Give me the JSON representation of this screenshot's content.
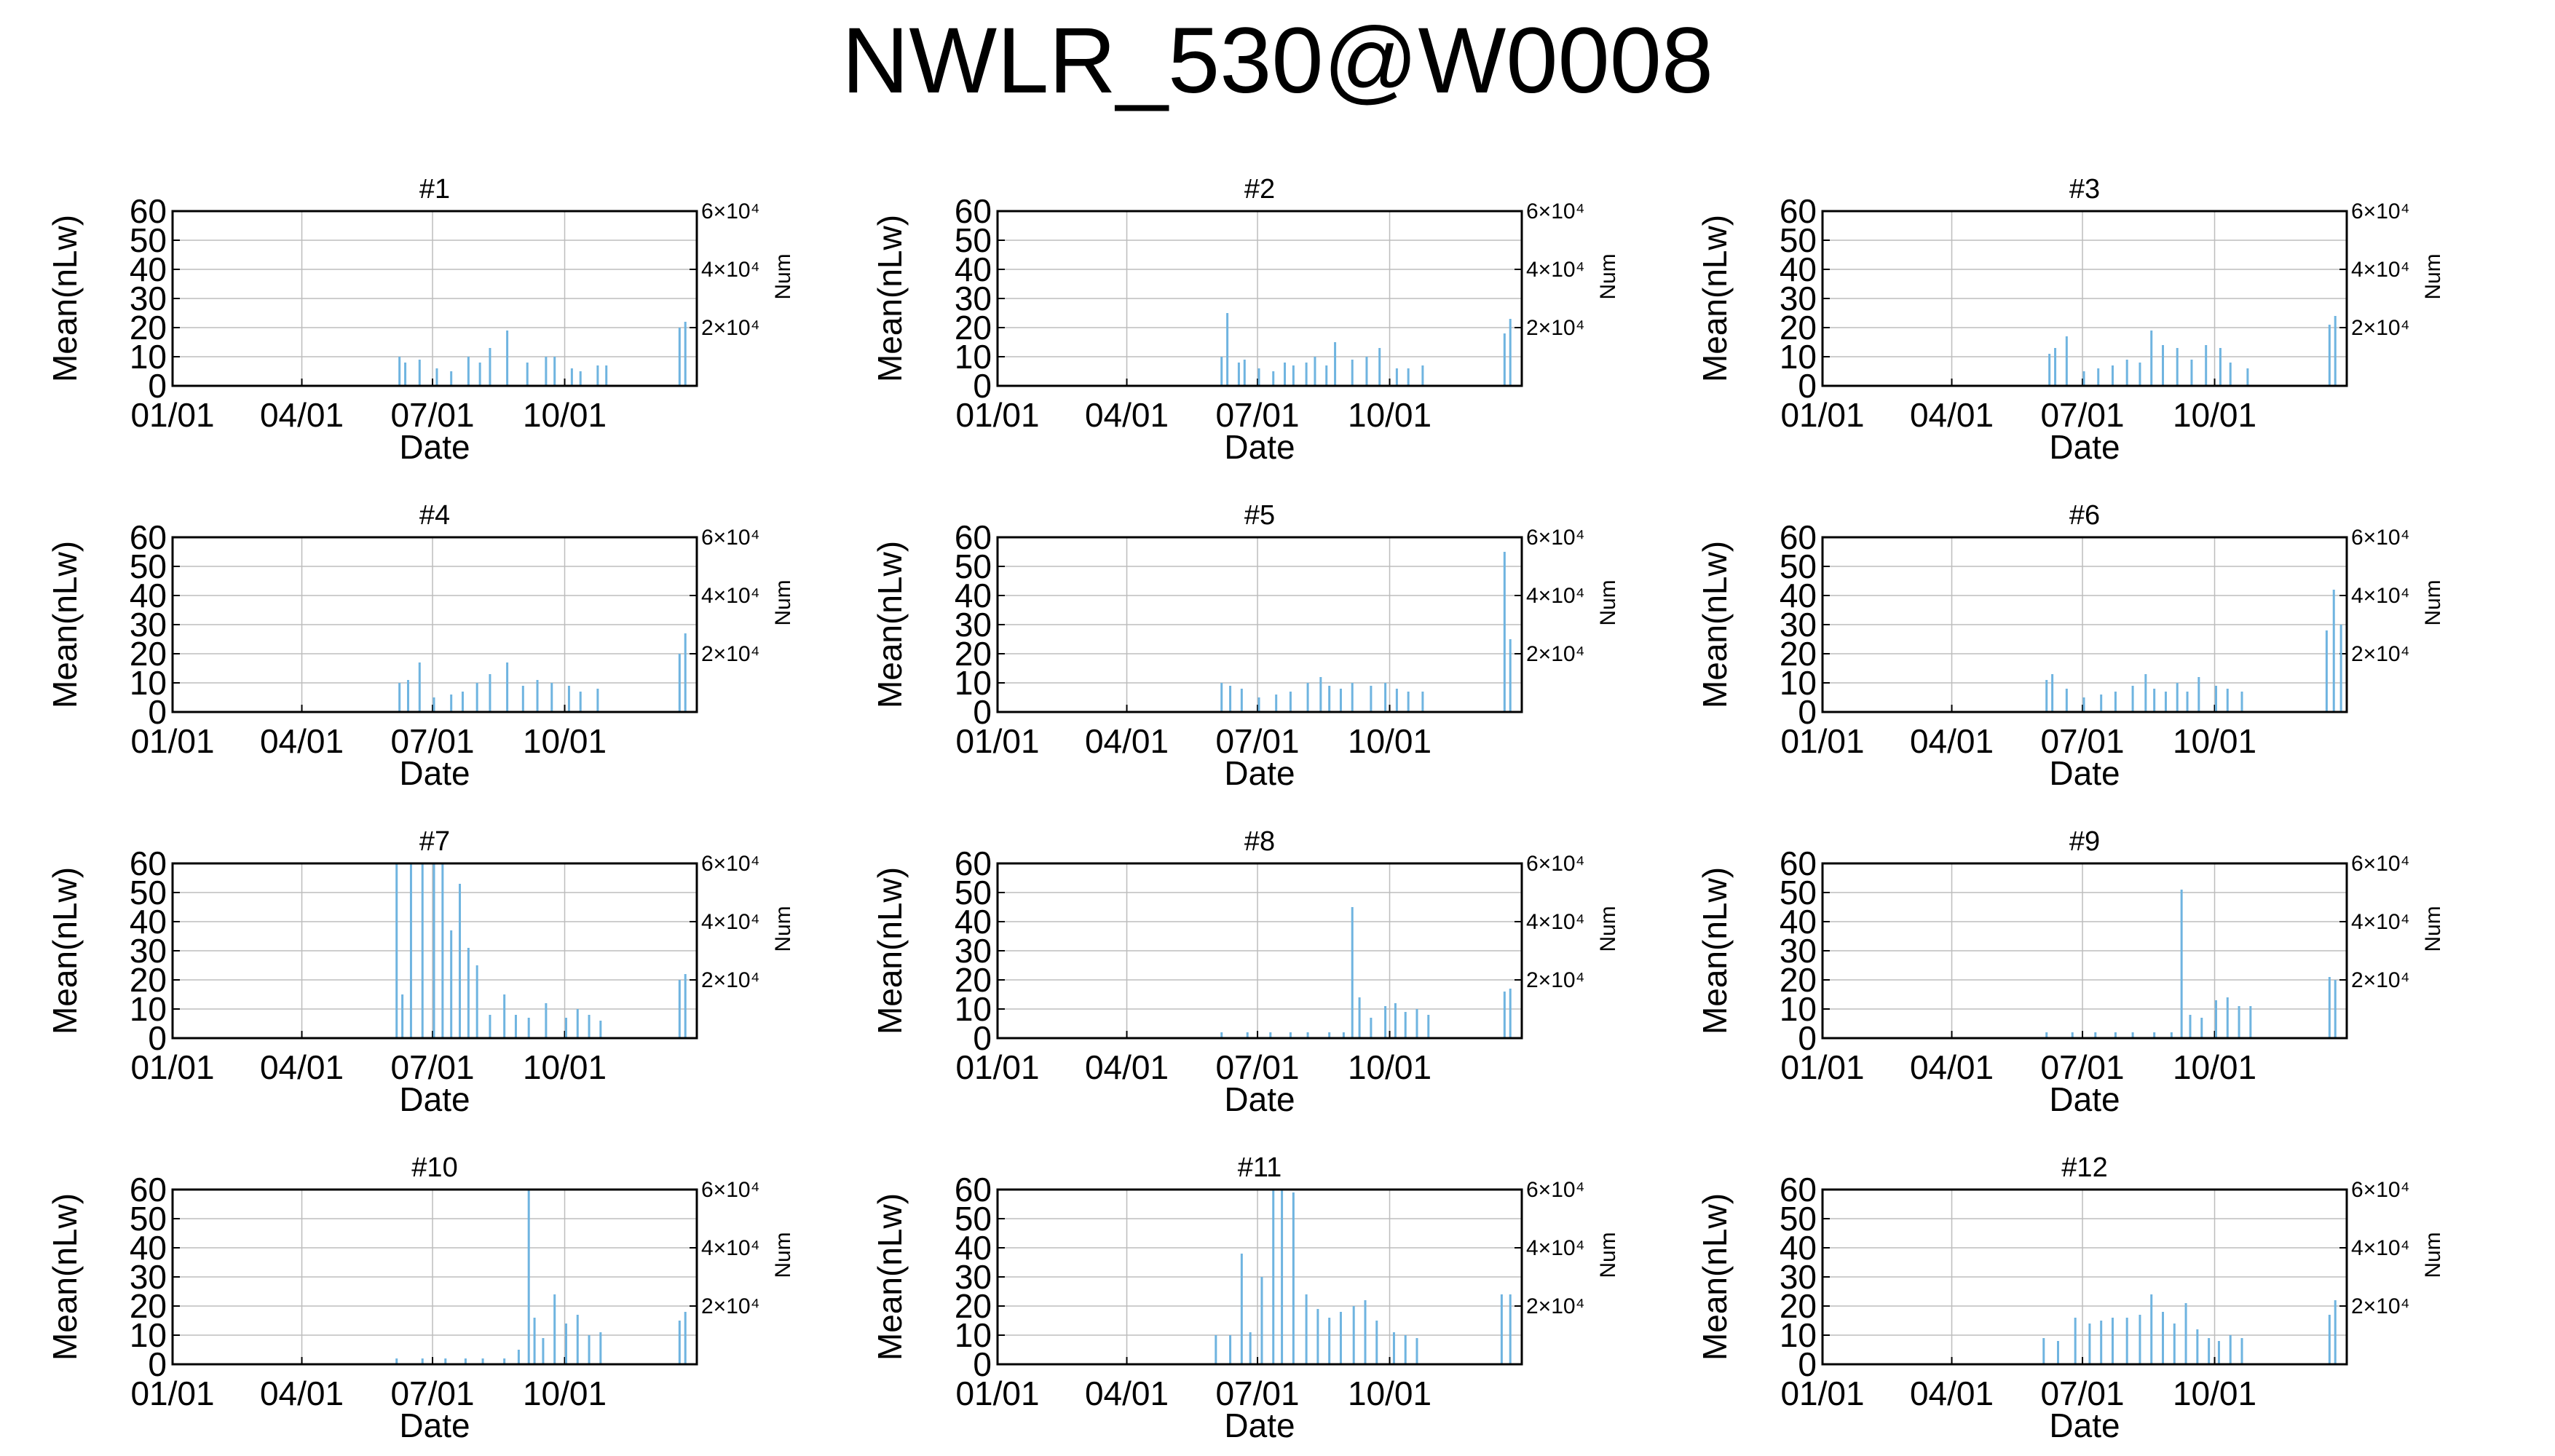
{
  "title": "NWLR_530@W0008",
  "chart_data": {
    "type": "bar",
    "xlabel": "Date",
    "ylabel": "Mean(nLw)",
    "y2label": "Num",
    "ylim": [
      0,
      60
    ],
    "yticks": [
      0,
      10,
      20,
      30,
      40,
      50,
      60
    ],
    "y2ticks": [
      "2×10⁴",
      "4×10⁴",
      "6×10⁴"
    ],
    "x_range": [
      "01/01",
      "12/31"
    ],
    "xticks": [
      "01/01",
      "04/01",
      "07/01",
      "10/01"
    ],
    "grid": true,
    "bar_color": "#6fb4e0",
    "panels": [
      {
        "title": "#1",
        "bars": [
          [
            "06/08",
            10
          ],
          [
            "06/12",
            8
          ],
          [
            "06/22",
            9
          ],
          [
            "07/04",
            6
          ],
          [
            "07/14",
            5
          ],
          [
            "07/26",
            10
          ],
          [
            "08/03",
            8
          ],
          [
            "08/10",
            13
          ],
          [
            "08/22",
            19
          ],
          [
            "09/05",
            8
          ],
          [
            "09/18",
            10
          ],
          [
            "09/24",
            10
          ],
          [
            "10/06",
            6
          ],
          [
            "10/12",
            5
          ],
          [
            "10/24",
            7
          ],
          [
            "10/30",
            7
          ],
          [
            "12/20",
            20
          ],
          [
            "12/24",
            22
          ]
        ]
      },
      {
        "title": "#2",
        "bars": [
          [
            "06/06",
            10
          ],
          [
            "06/10",
            25
          ],
          [
            "06/18",
            8
          ],
          [
            "06/22",
            9
          ],
          [
            "07/02",
            6
          ],
          [
            "07/12",
            5
          ],
          [
            "07/20",
            8
          ],
          [
            "07/26",
            7
          ],
          [
            "08/04",
            8
          ],
          [
            "08/10",
            10
          ],
          [
            "08/18",
            7
          ],
          [
            "08/24",
            15
          ],
          [
            "09/05",
            9
          ],
          [
            "09/15",
            10
          ],
          [
            "09/24",
            13
          ],
          [
            "10/06",
            6
          ],
          [
            "10/14",
            6
          ],
          [
            "10/24",
            7
          ],
          [
            "12/20",
            18
          ],
          [
            "12/24",
            23
          ]
        ]
      },
      {
        "title": "#3",
        "bars": [
          [
            "06/08",
            11
          ],
          [
            "06/12",
            13
          ],
          [
            "06/20",
            17
          ],
          [
            "07/02",
            5
          ],
          [
            "07/12",
            6
          ],
          [
            "07/22",
            7
          ],
          [
            "08/01",
            9
          ],
          [
            "08/10",
            8
          ],
          [
            "08/18",
            19
          ],
          [
            "08/26",
            14
          ],
          [
            "09/05",
            13
          ],
          [
            "09/15",
            9
          ],
          [
            "09/25",
            14
          ],
          [
            "10/05",
            13
          ],
          [
            "10/12",
            8
          ],
          [
            "10/24",
            6
          ],
          [
            "12/20",
            21
          ],
          [
            "12/24",
            24
          ]
        ]
      },
      {
        "title": "#4",
        "bars": [
          [
            "06/08",
            10
          ],
          [
            "06/14",
            11
          ],
          [
            "06/22",
            17
          ],
          [
            "07/02",
            5
          ],
          [
            "07/14",
            6
          ],
          [
            "07/22",
            7
          ],
          [
            "08/01",
            10
          ],
          [
            "08/10",
            13
          ],
          [
            "08/22",
            17
          ],
          [
            "09/02",
            9
          ],
          [
            "09/12",
            11
          ],
          [
            "09/22",
            10
          ],
          [
            "10/04",
            9
          ],
          [
            "10/12",
            7
          ],
          [
            "10/24",
            8
          ],
          [
            "12/20",
            20
          ],
          [
            "12/24",
            27
          ]
        ]
      },
      {
        "title": "#5",
        "bars": [
          [
            "06/06",
            10
          ],
          [
            "06/12",
            9
          ],
          [
            "06/20",
            8
          ],
          [
            "07/02",
            5
          ],
          [
            "07/14",
            6
          ],
          [
            "07/24",
            7
          ],
          [
            "08/05",
            10
          ],
          [
            "08/14",
            12
          ],
          [
            "08/20",
            9
          ],
          [
            "08/28",
            8
          ],
          [
            "09/05",
            10
          ],
          [
            "09/18",
            9
          ],
          [
            "09/28",
            10
          ],
          [
            "10/06",
            8
          ],
          [
            "10/14",
            7
          ],
          [
            "10/24",
            7
          ],
          [
            "12/20",
            55
          ],
          [
            "12/24",
            25
          ]
        ]
      },
      {
        "title": "#6",
        "bars": [
          [
            "06/06",
            11
          ],
          [
            "06/10",
            13
          ],
          [
            "06/20",
            8
          ],
          [
            "07/02",
            5
          ],
          [
            "07/14",
            6
          ],
          [
            "07/24",
            7
          ],
          [
            "08/05",
            9
          ],
          [
            "08/14",
            13
          ],
          [
            "08/20",
            8
          ],
          [
            "08/28",
            7
          ],
          [
            "09/05",
            10
          ],
          [
            "09/12",
            7
          ],
          [
            "09/20",
            12
          ],
          [
            "10/02",
            9
          ],
          [
            "10/10",
            8
          ],
          [
            "10/20",
            7
          ],
          [
            "12/18",
            28
          ],
          [
            "12/23",
            42
          ],
          [
            "12/28",
            30
          ]
        ]
      },
      {
        "title": "#7",
        "bars": [
          [
            "06/06",
            60
          ],
          [
            "06/10",
            15
          ],
          [
            "06/16",
            60
          ],
          [
            "06/24",
            60
          ],
          [
            "07/02",
            60
          ],
          [
            "07/08",
            60
          ],
          [
            "07/14",
            37
          ],
          [
            "07/20",
            53
          ],
          [
            "07/26",
            31
          ],
          [
            "08/01",
            25
          ],
          [
            "08/10",
            8
          ],
          [
            "08/20",
            15
          ],
          [
            "08/28",
            8
          ],
          [
            "09/06",
            7
          ],
          [
            "09/18",
            12
          ],
          [
            "10/02",
            7
          ],
          [
            "10/10",
            10
          ],
          [
            "10/18",
            8
          ],
          [
            "10/26",
            6
          ],
          [
            "12/20",
            20
          ],
          [
            "12/24",
            22
          ]
        ]
      },
      {
        "title": "#8",
        "bars": [
          [
            "06/06",
            2
          ],
          [
            "06/24",
            2
          ],
          [
            "07/10",
            2
          ],
          [
            "07/24",
            2
          ],
          [
            "08/05",
            2
          ],
          [
            "08/20",
            2
          ],
          [
            "08/30",
            2
          ],
          [
            "09/05",
            45
          ],
          [
            "09/10",
            14
          ],
          [
            "09/18",
            7
          ],
          [
            "09/28",
            11
          ],
          [
            "10/05",
            12
          ],
          [
            "10/12",
            9
          ],
          [
            "10/20",
            10
          ],
          [
            "10/28",
            8
          ],
          [
            "12/20",
            16
          ],
          [
            "12/24",
            17
          ]
        ]
      },
      {
        "title": "#9",
        "bars": [
          [
            "06/06",
            2
          ],
          [
            "06/24",
            2
          ],
          [
            "07/10",
            2
          ],
          [
            "07/24",
            2
          ],
          [
            "08/05",
            2
          ],
          [
            "08/20",
            2
          ],
          [
            "09/01",
            2
          ],
          [
            "09/08",
            51
          ],
          [
            "09/14",
            8
          ],
          [
            "09/22",
            7
          ],
          [
            "10/02",
            13
          ],
          [
            "10/10",
            14
          ],
          [
            "10/18",
            11
          ],
          [
            "10/26",
            11
          ],
          [
            "12/20",
            21
          ],
          [
            "12/24",
            20
          ]
        ]
      },
      {
        "title": "#10",
        "bars": [
          [
            "06/06",
            2
          ],
          [
            "06/24",
            2
          ],
          [
            "07/10",
            2
          ],
          [
            "07/24",
            2
          ],
          [
            "08/05",
            2
          ],
          [
            "08/20",
            2
          ],
          [
            "08/30",
            5
          ],
          [
            "09/06",
            60
          ],
          [
            "09/10",
            16
          ],
          [
            "09/16",
            9
          ],
          [
            "09/24",
            24
          ],
          [
            "10/02",
            14
          ],
          [
            "10/10",
            17
          ],
          [
            "10/18",
            10
          ],
          [
            "10/26",
            11
          ],
          [
            "12/20",
            15
          ],
          [
            "12/24",
            18
          ]
        ]
      },
      {
        "title": "#11",
        "bars": [
          [
            "06/02",
            10
          ],
          [
            "06/12",
            10
          ],
          [
            "06/20",
            38
          ],
          [
            "06/26",
            11
          ],
          [
            "07/04",
            30
          ],
          [
            "07/12",
            60
          ],
          [
            "07/18",
            60
          ],
          [
            "07/26",
            59
          ],
          [
            "08/04",
            24
          ],
          [
            "08/12",
            19
          ],
          [
            "08/20",
            16
          ],
          [
            "08/28",
            18
          ],
          [
            "09/06",
            20
          ],
          [
            "09/14",
            22
          ],
          [
            "09/22",
            15
          ],
          [
            "10/04",
            11
          ],
          [
            "10/12",
            10
          ],
          [
            "10/20",
            9
          ],
          [
            "12/18",
            24
          ],
          [
            "12/24",
            24
          ]
        ]
      },
      {
        "title": "#12",
        "bars": [
          [
            "06/04",
            9
          ],
          [
            "06/14",
            8
          ],
          [
            "06/26",
            16
          ],
          [
            "07/06",
            14
          ],
          [
            "07/14",
            15
          ],
          [
            "07/22",
            16
          ],
          [
            "08/01",
            16
          ],
          [
            "08/10",
            17
          ],
          [
            "08/18",
            24
          ],
          [
            "08/26",
            18
          ],
          [
            "09/03",
            14
          ],
          [
            "09/11",
            21
          ],
          [
            "09/19",
            12
          ],
          [
            "09/27",
            9
          ],
          [
            "10/04",
            8
          ],
          [
            "10/12",
            10
          ],
          [
            "10/20",
            9
          ],
          [
            "12/20",
            17
          ],
          [
            "12/24",
            22
          ]
        ]
      }
    ]
  }
}
